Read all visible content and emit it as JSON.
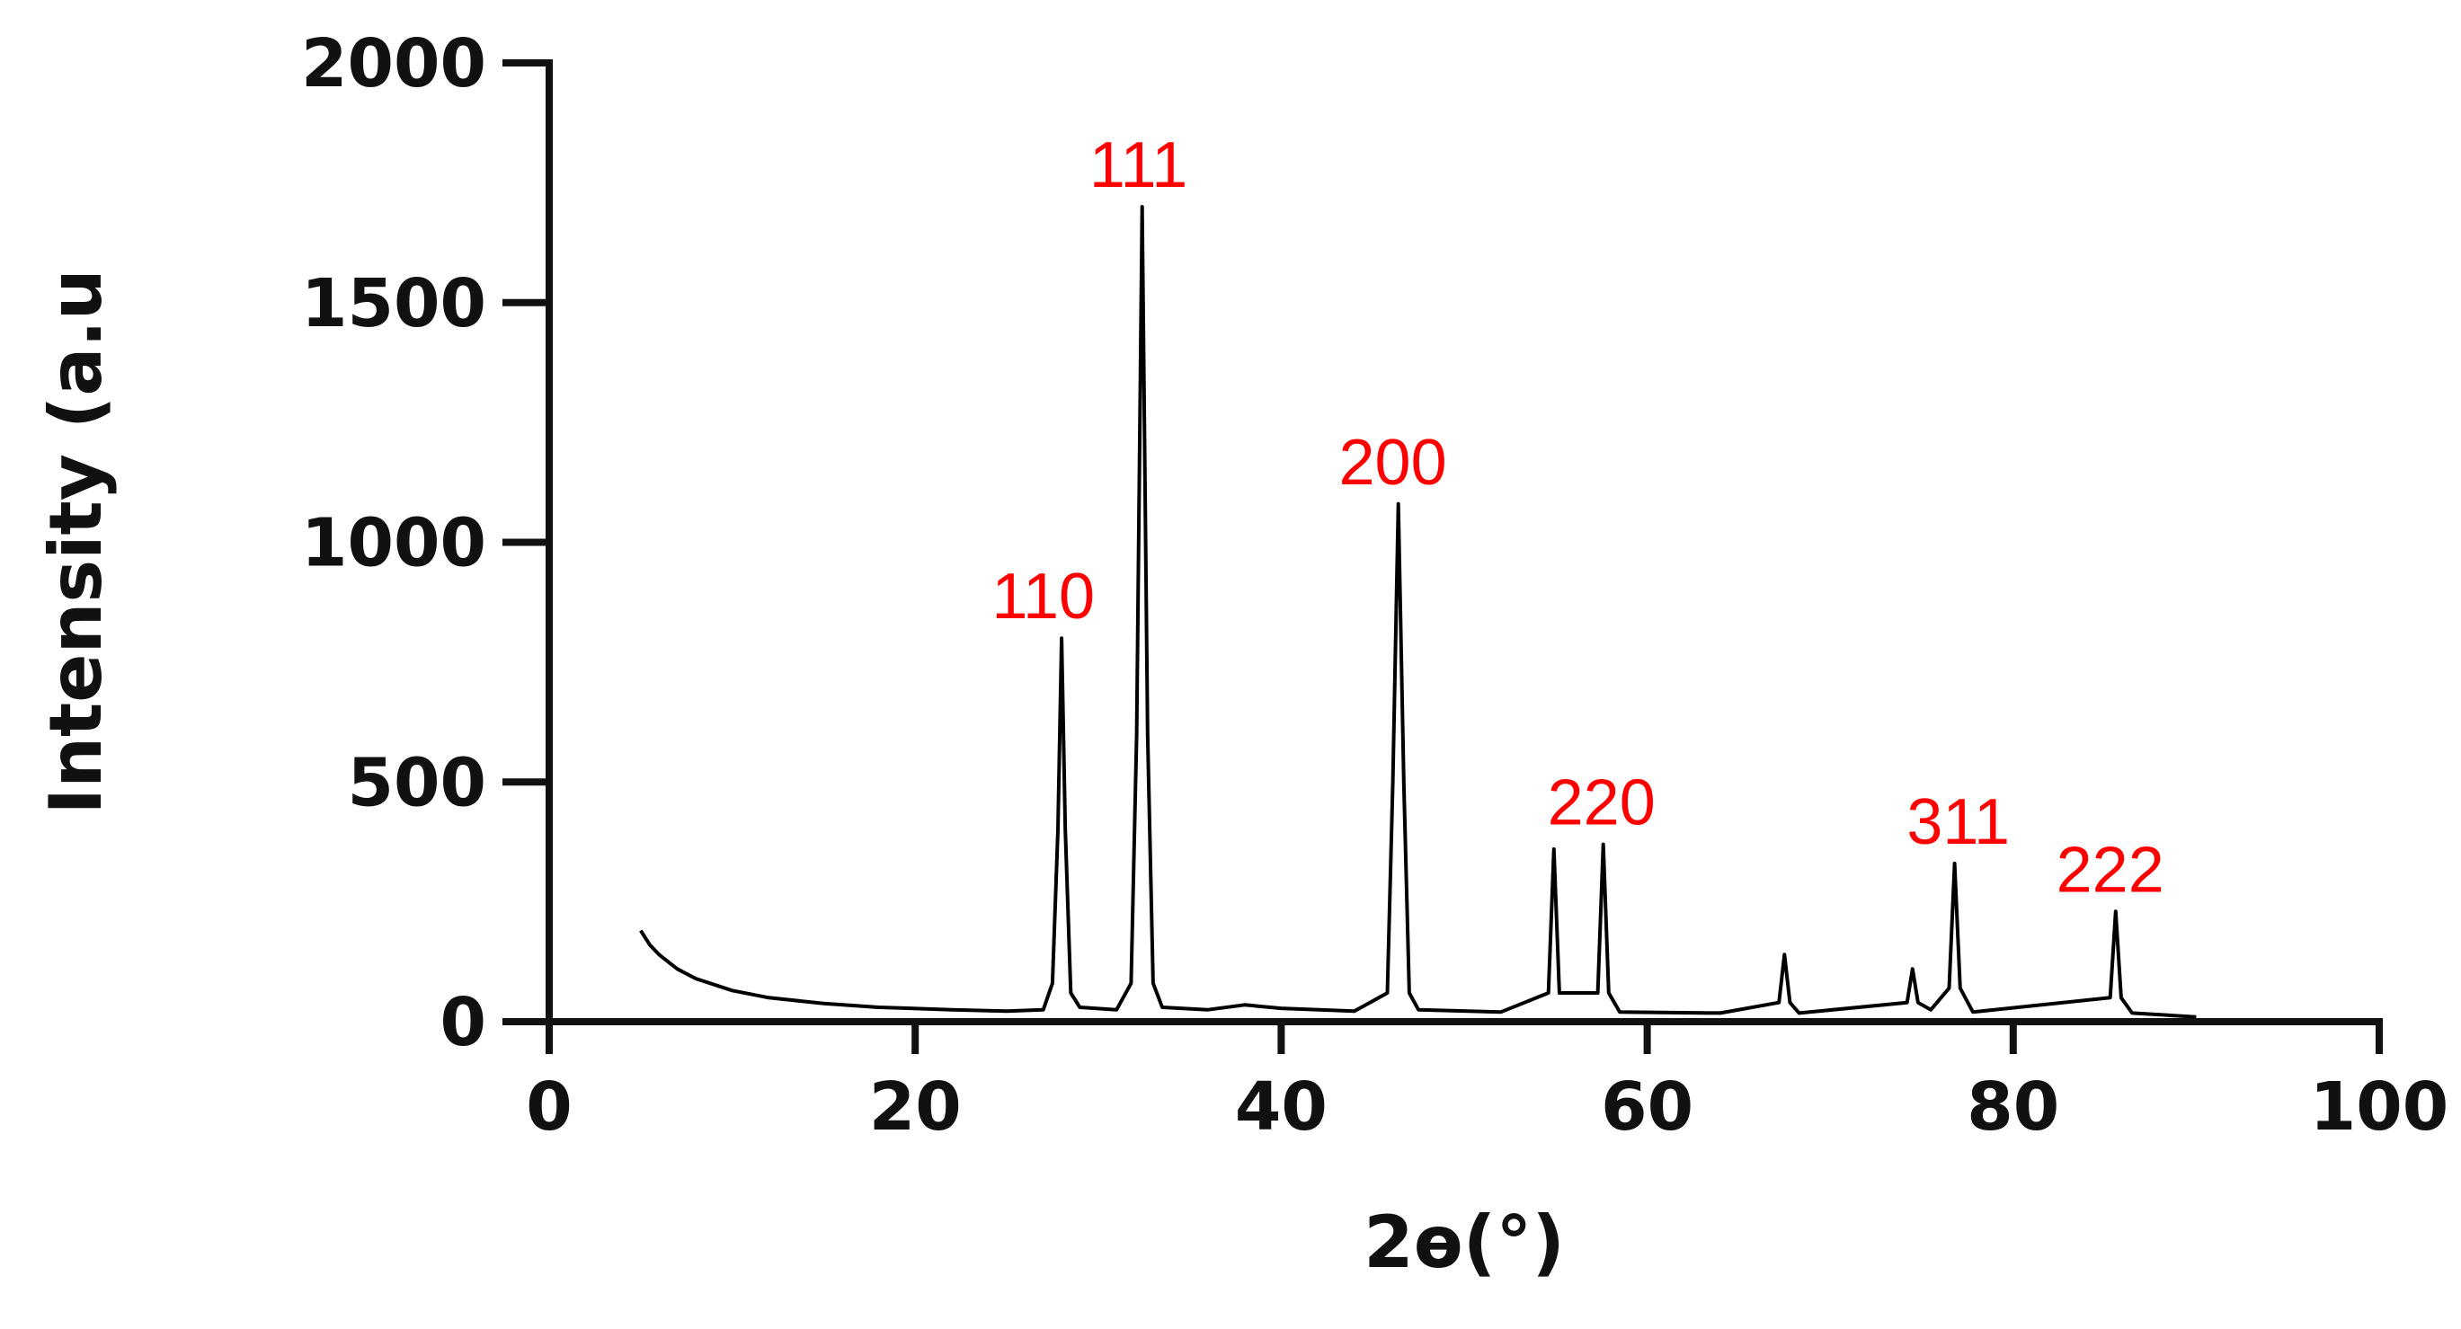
{
  "chart_data": {
    "type": "line",
    "xlabel": "2ɵ(°)",
    "ylabel": "Intensity (a.u",
    "x": [
      5,
      5.5,
      6,
      7,
      8,
      10,
      12,
      15,
      18,
      22,
      25,
      27,
      27.5,
      27.8,
      28,
      28.2,
      28.5,
      29,
      31,
      31.8,
      32.1,
      32.4,
      32.7,
      33,
      33.5,
      36,
      38,
      40,
      44,
      45.8,
      46.1,
      46.4,
      46.7,
      47,
      47.5,
      52,
      54.6,
      54.9,
      55.2,
      57.3,
      57.6,
      57.9,
      58.5,
      64,
      67.2,
      67.5,
      67.8,
      68.3,
      74.2,
      74.5,
      74.8,
      75.5,
      76.5,
      76.8,
      77.1,
      77.8,
      85.3,
      85.6,
      85.9,
      86.5,
      90
    ],
    "series": [
      {
        "color": "#000000",
        "values": [
          190,
          160,
          140,
          110,
          90,
          65,
          50,
          38,
          30,
          25,
          22,
          25,
          80,
          400,
          800,
          400,
          60,
          30,
          25,
          80,
          600,
          1700,
          600,
          80,
          30,
          25,
          35,
          28,
          22,
          60,
          500,
          1080,
          500,
          60,
          25,
          20,
          60,
          360,
          60,
          60,
          370,
          60,
          20,
          18,
          40,
          140,
          40,
          18,
          40,
          110,
          40,
          25,
          70,
          330,
          70,
          20,
          50,
          230,
          50,
          18,
          10
        ]
      }
    ],
    "annotations": [
      {
        "text": "110",
        "x": 27
      },
      {
        "text": "111",
        "x": 32.2
      },
      {
        "text": "200",
        "x": 46.1
      },
      {
        "text": "220",
        "x": 57.5
      },
      {
        "text": "311",
        "x": 77
      },
      {
        "text": "222",
        "x": 85.3
      }
    ],
    "annotation_color": "#ff0000",
    "xlim": [
      0,
      100
    ],
    "xticks": [
      0,
      20,
      40,
      60,
      80,
      100
    ],
    "ylim": [
      0,
      2000
    ],
    "yticks": [
      0,
      500,
      1000,
      1500,
      2000
    ]
  }
}
